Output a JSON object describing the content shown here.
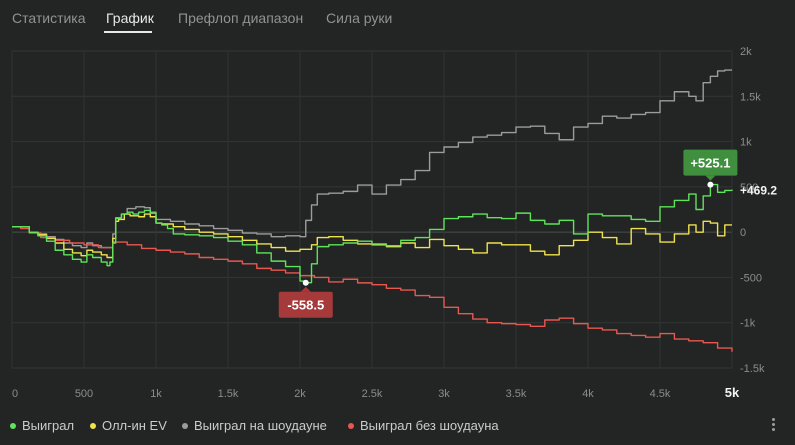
{
  "tabs": [
    {
      "label": "Статистика",
      "active": false
    },
    {
      "label": "График",
      "active": true
    },
    {
      "label": "Префлоп диапазон",
      "active": false
    },
    {
      "label": "Сила руки",
      "active": false
    }
  ],
  "chart_data": {
    "type": "line",
    "x_ticks": [
      "0",
      "500",
      "1k",
      "1.5k",
      "2k",
      "2.5k",
      "3k",
      "3.5k",
      "4k",
      "4.5k",
      "5k"
    ],
    "x_tick_values": [
      0,
      500,
      1000,
      1500,
      2000,
      2500,
      3000,
      3500,
      4000,
      4500,
      5000
    ],
    "xlim": [
      0,
      5000
    ],
    "y_ticks": [
      "2k",
      "1.5k",
      "1k",
      "500",
      "0",
      "-500",
      "-1k",
      "-1.5k"
    ],
    "y_tick_values": [
      2000,
      1500,
      1000,
      500,
      0,
      -500,
      -1000,
      -1500
    ],
    "ylim": [
      -1500,
      2000
    ],
    "grid": true,
    "legend_position": "bottom-left",
    "series": [
      {
        "name": "Выиграл",
        "color": "#5ee35a",
        "points": [
          [
            0,
            60
          ],
          [
            60,
            60
          ],
          [
            120,
            0
          ],
          [
            180,
            -40
          ],
          [
            240,
            -100
          ],
          [
            300,
            -200
          ],
          [
            360,
            -250
          ],
          [
            420,
            -300
          ],
          [
            480,
            -330
          ],
          [
            520,
            -250
          ],
          [
            560,
            -280
          ],
          [
            620,
            -330
          ],
          [
            660,
            -370
          ],
          [
            680,
            -330
          ],
          [
            700,
            -120
          ],
          [
            720,
            150
          ],
          [
            740,
            150
          ],
          [
            760,
            200
          ],
          [
            800,
            220
          ],
          [
            840,
            200
          ],
          [
            880,
            220
          ],
          [
            920,
            240
          ],
          [
            960,
            210
          ],
          [
            1000,
            100
          ],
          [
            1040,
            80
          ],
          [
            1080,
            40
          ],
          [
            1120,
            -20
          ],
          [
            1200,
            -30
          ],
          [
            1300,
            -40
          ],
          [
            1400,
            -60
          ],
          [
            1500,
            -100
          ],
          [
            1600,
            -140
          ],
          [
            1700,
            -230
          ],
          [
            1800,
            -320
          ],
          [
            1900,
            -380
          ],
          [
            2000,
            -540
          ],
          [
            2040,
            -558
          ],
          [
            2080,
            -350
          ],
          [
            2120,
            -160
          ],
          [
            2200,
            -140
          ],
          [
            2300,
            -120
          ],
          [
            2400,
            -100
          ],
          [
            2500,
            -130
          ],
          [
            2600,
            -150
          ],
          [
            2700,
            -90
          ],
          [
            2800,
            -60
          ],
          [
            2900,
            30
          ],
          [
            3000,
            150
          ],
          [
            3100,
            170
          ],
          [
            3200,
            200
          ],
          [
            3300,
            160
          ],
          [
            3400,
            150
          ],
          [
            3500,
            210
          ],
          [
            3600,
            130
          ],
          [
            3700,
            90
          ],
          [
            3800,
            130
          ],
          [
            3900,
            -20
          ],
          [
            4000,
            200
          ],
          [
            4100,
            180
          ],
          [
            4200,
            180
          ],
          [
            4300,
            140
          ],
          [
            4400,
            120
          ],
          [
            4500,
            280
          ],
          [
            4600,
            350
          ],
          [
            4700,
            420
          ],
          [
            4750,
            250
          ],
          [
            4800,
            400
          ],
          [
            4850,
            525
          ],
          [
            4900,
            440
          ],
          [
            4950,
            460
          ],
          [
            5000,
            469
          ]
        ]
      },
      {
        "name": "Олл-ин EV",
        "color": "#f0e24d",
        "points": [
          [
            0,
            60
          ],
          [
            60,
            60
          ],
          [
            120,
            0
          ],
          [
            180,
            -30
          ],
          [
            240,
            -70
          ],
          [
            300,
            -120
          ],
          [
            360,
            -190
          ],
          [
            420,
            -230
          ],
          [
            480,
            -260
          ],
          [
            520,
            -200
          ],
          [
            560,
            -220
          ],
          [
            620,
            -250
          ],
          [
            660,
            -280
          ],
          [
            700,
            -70
          ],
          [
            720,
            120
          ],
          [
            740,
            140
          ],
          [
            780,
            200
          ],
          [
            820,
            180
          ],
          [
            880,
            170
          ],
          [
            920,
            200
          ],
          [
            960,
            170
          ],
          [
            1000,
            100
          ],
          [
            1040,
            90
          ],
          [
            1120,
            60
          ],
          [
            1200,
            30
          ],
          [
            1300,
            0
          ],
          [
            1400,
            -20
          ],
          [
            1500,
            -50
          ],
          [
            1600,
            -90
          ],
          [
            1700,
            -130
          ],
          [
            1800,
            -170
          ],
          [
            1900,
            -210
          ],
          [
            2000,
            -190
          ],
          [
            2080,
            -140
          ],
          [
            2120,
            -60
          ],
          [
            2200,
            -50
          ],
          [
            2300,
            -90
          ],
          [
            2400,
            -130
          ],
          [
            2500,
            -140
          ],
          [
            2600,
            -160
          ],
          [
            2700,
            -120
          ],
          [
            2800,
            -170
          ],
          [
            2900,
            -80
          ],
          [
            3000,
            -150
          ],
          [
            3100,
            -190
          ],
          [
            3200,
            -230
          ],
          [
            3300,
            -120
          ],
          [
            3400,
            -140
          ],
          [
            3500,
            -140
          ],
          [
            3600,
            -210
          ],
          [
            3700,
            -250
          ],
          [
            3800,
            -150
          ],
          [
            3900,
            -90
          ],
          [
            4000,
            0
          ],
          [
            4100,
            -60
          ],
          [
            4200,
            -130
          ],
          [
            4300,
            40
          ],
          [
            4400,
            -20
          ],
          [
            4500,
            -110
          ],
          [
            4600,
            -20
          ],
          [
            4700,
            80
          ],
          [
            4750,
            0
          ],
          [
            4800,
            120
          ],
          [
            4850,
            100
          ],
          [
            4900,
            -40
          ],
          [
            4950,
            80
          ],
          [
            5000,
            80
          ]
        ]
      },
      {
        "name": "Выиграл на шоудауне",
        "color": "#9c9c9c",
        "points": [
          [
            0,
            60
          ],
          [
            60,
            60
          ],
          [
            120,
            0
          ],
          [
            180,
            -20
          ],
          [
            240,
            -50
          ],
          [
            300,
            -80
          ],
          [
            360,
            -120
          ],
          [
            420,
            -150
          ],
          [
            480,
            -170
          ],
          [
            520,
            -120
          ],
          [
            560,
            -150
          ],
          [
            620,
            -170
          ],
          [
            660,
            -170
          ],
          [
            700,
            -20
          ],
          [
            720,
            160
          ],
          [
            760,
            200
          ],
          [
            800,
            260
          ],
          [
            860,
            280
          ],
          [
            920,
            270
          ],
          [
            960,
            220
          ],
          [
            1000,
            140
          ],
          [
            1100,
            120
          ],
          [
            1200,
            90
          ],
          [
            1300,
            70
          ],
          [
            1400,
            40
          ],
          [
            1500,
            20
          ],
          [
            1600,
            -10
          ],
          [
            1700,
            -20
          ],
          [
            1800,
            -50
          ],
          [
            1900,
            -40
          ],
          [
            2000,
            -50
          ],
          [
            2040,
            130
          ],
          [
            2080,
            300
          ],
          [
            2120,
            420
          ],
          [
            2200,
            430
          ],
          [
            2300,
            450
          ],
          [
            2400,
            520
          ],
          [
            2500,
            420
          ],
          [
            2600,
            520
          ],
          [
            2700,
            580
          ],
          [
            2800,
            680
          ],
          [
            2900,
            880
          ],
          [
            3000,
            940
          ],
          [
            3100,
            990
          ],
          [
            3200,
            1050
          ],
          [
            3300,
            1070
          ],
          [
            3400,
            1100
          ],
          [
            3500,
            1160
          ],
          [
            3600,
            1170
          ],
          [
            3700,
            1090
          ],
          [
            3800,
            1020
          ],
          [
            3900,
            1160
          ],
          [
            4000,
            1200
          ],
          [
            4100,
            1280
          ],
          [
            4200,
            1260
          ],
          [
            4300,
            1300
          ],
          [
            4400,
            1320
          ],
          [
            4500,
            1450
          ],
          [
            4600,
            1550
          ],
          [
            4700,
            1500
          ],
          [
            4750,
            1450
          ],
          [
            4800,
            1650
          ],
          [
            4850,
            1720
          ],
          [
            4900,
            1780
          ],
          [
            4950,
            1790
          ],
          [
            5000,
            1790
          ]
        ]
      },
      {
        "name": "Выиграл без шоудауна",
        "color": "#e85850",
        "points": [
          [
            0,
            60
          ],
          [
            60,
            40
          ],
          [
            120,
            -10
          ],
          [
            200,
            -60
          ],
          [
            300,
            -90
          ],
          [
            400,
            -120
          ],
          [
            500,
            -140
          ],
          [
            600,
            -170
          ],
          [
            700,
            -110
          ],
          [
            800,
            -140
          ],
          [
            900,
            -180
          ],
          [
            1000,
            -200
          ],
          [
            1100,
            -220
          ],
          [
            1200,
            -240
          ],
          [
            1300,
            -280
          ],
          [
            1400,
            -300
          ],
          [
            1500,
            -320
          ],
          [
            1600,
            -350
          ],
          [
            1700,
            -400
          ],
          [
            1800,
            -420
          ],
          [
            1900,
            -450
          ],
          [
            2000,
            -480
          ],
          [
            2100,
            -500
          ],
          [
            2200,
            -550
          ],
          [
            2300,
            -520
          ],
          [
            2400,
            -560
          ],
          [
            2500,
            -580
          ],
          [
            2600,
            -620
          ],
          [
            2700,
            -640
          ],
          [
            2800,
            -700
          ],
          [
            2900,
            -720
          ],
          [
            3000,
            -830
          ],
          [
            3100,
            -900
          ],
          [
            3200,
            -960
          ],
          [
            3300,
            -1000
          ],
          [
            3400,
            -1010
          ],
          [
            3500,
            -1020
          ],
          [
            3600,
            -1040
          ],
          [
            3700,
            -970
          ],
          [
            3800,
            -950
          ],
          [
            3900,
            -1010
          ],
          [
            4000,
            -1060
          ],
          [
            4100,
            -1080
          ],
          [
            4200,
            -1120
          ],
          [
            4300,
            -1140
          ],
          [
            4400,
            -1160
          ],
          [
            4500,
            -1120
          ],
          [
            4600,
            -1180
          ],
          [
            4700,
            -1200
          ],
          [
            4800,
            -1220
          ],
          [
            4900,
            -1280
          ],
          [
            5000,
            -1320
          ]
        ]
      }
    ],
    "annotations": [
      {
        "text": "+525.1",
        "x": 4850,
        "y": 525.1,
        "color": "#3f8f3e",
        "position": "above"
      },
      {
        "text": "-558.5",
        "x": 2040,
        "y": -558.5,
        "color": "#a63a3a",
        "position": "below"
      }
    ],
    "end_label": {
      "text": "+469.2",
      "y": 469.2
    }
  },
  "legend": [
    {
      "label": "Выиграл",
      "color": "#5ee35a"
    },
    {
      "label": "Олл-ин EV",
      "color": "#f0e24d"
    },
    {
      "label": "Выиграл на шоудауне",
      "color": "#9c9c9c"
    },
    {
      "label": "Выиграл без шоудауна",
      "color": "#e85850"
    }
  ]
}
